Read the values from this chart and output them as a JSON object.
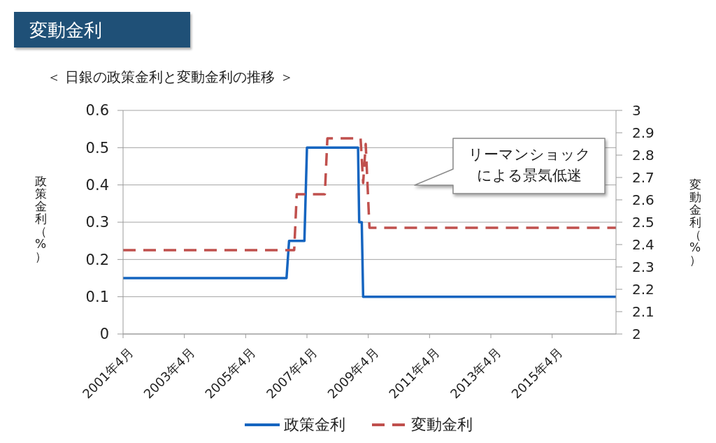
{
  "chart_data": {
    "type": "line",
    "title": "変動金利",
    "subtitle": "＜ 日銀の政策金利と変動金利の推移 ＞",
    "ylabel": "政策金利（%）",
    "y2label": "変動金利（%）",
    "annotations": [
      "リーマンショックによる景気低迷"
    ],
    "xlim": [
      "2001-04",
      "2017-05"
    ],
    "xticks": [
      {
        "value": "2001-04",
        "label": "2001年4月"
      },
      {
        "value": "2003-04",
        "label": "2003年4月"
      },
      {
        "value": "2005-04",
        "label": "2005年4月"
      },
      {
        "value": "2007-04",
        "label": "2007年4月"
      },
      {
        "value": "2009-04",
        "label": "2009年4月"
      },
      {
        "value": "2011-04",
        "label": "2011年4月"
      },
      {
        "value": "2013-04",
        "label": "2013年4月"
      },
      {
        "value": "2015-04",
        "label": "2015年4月"
      }
    ],
    "ylim": [
      0,
      0.6
    ],
    "yticks": [
      0,
      0.1,
      0.2,
      0.3,
      0.4,
      0.5,
      0.6
    ],
    "y2lim": [
      2,
      3
    ],
    "y2ticks": [
      2,
      2.1,
      2.2,
      2.3,
      2.4,
      2.5,
      2.6,
      2.7,
      2.8,
      2.9,
      3
    ],
    "grid": "y",
    "legend": "bottom",
    "series": [
      {
        "name": "政策金利",
        "color": "#1565c0",
        "line_style": "solid",
        "x": [
          "2001-04",
          "2006-08",
          "2006-09",
          "2007-03",
          "2007-04",
          "2008-12",
          "2008-12-15",
          "2009-01-15",
          "2009-02",
          "2017-05"
        ],
        "values": [
          0.15,
          0.15,
          0.25,
          0.25,
          0.5,
          0.5,
          0.3,
          0.3,
          0.1,
          0.1
        ]
      },
      {
        "name": "変動金利",
        "color": "#c0504d",
        "line_style": "dashed",
        "axis": "y2",
        "x": [
          "2001-04",
          "2006-11",
          "2006-12",
          "2007-11",
          "2007-12",
          "2009-01",
          "2009-02",
          "2009-03",
          "2009-04-15",
          "2017-05"
        ],
        "values": [
          2.375,
          2.375,
          2.625,
          2.625,
          2.875,
          2.875,
          2.675,
          2.85,
          2.475,
          2.475
        ]
      }
    ]
  }
}
